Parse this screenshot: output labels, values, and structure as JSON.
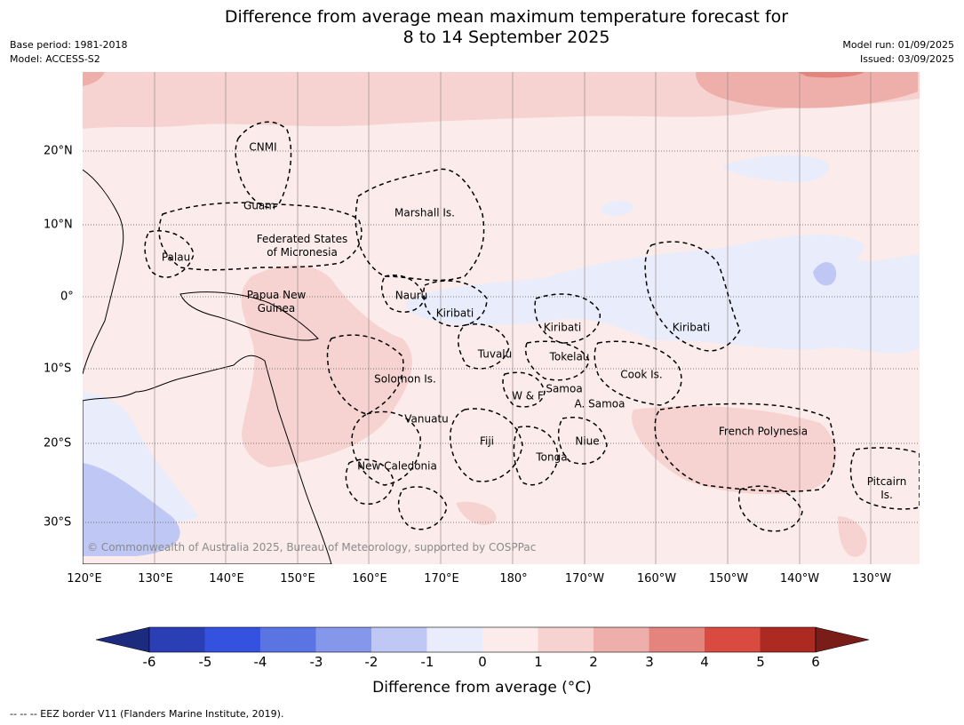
{
  "title_line1": "Difference from average mean maximum temperature forecast for",
  "title_line2": "8 to 14 September 2025",
  "base_period": "Base period: 1981-2018",
  "model": "Model: ACCESS-S2",
  "model_run": "Model run: 01/09/2025",
  "issued": "Issued: 03/09/2025",
  "copyright": "© Commonwealth of Australia 2025, Bureau of Meteorology, supported by COSPPac",
  "lon_labels": [
    "120°E",
    "130°E",
    "140°E",
    "150°E",
    "160°E",
    "170°E",
    "180°",
    "170°W",
    "160°W",
    "150°W",
    "140°W",
    "130°W"
  ],
  "lat_labels": [
    "20°N",
    "10°N",
    "0°",
    "10°S",
    "20°S",
    "30°S"
  ],
  "places": {
    "cnmi": "CNMI",
    "guam": "Guam",
    "marshall": "Marshall Is.",
    "fsm_1": "Federated States",
    "fsm_2": "of Micronesia",
    "palau": "Palau",
    "nauru": "Nauru",
    "png_1": "Papua New",
    "png_2": "Guinea",
    "kiribati_w": "Kiribati",
    "kiribati_c": "Kiribati",
    "kiribati_e": "Kiribati",
    "tuvalu": "Tuvalu",
    "tokelau": "Tokelau",
    "cook": "Cook Is.",
    "solomon": "Solomon Is.",
    "wallis": "W & F",
    "samoa": "Samoa",
    "asamoa": "A. Samoa",
    "vanuatu": "Vanuatu",
    "fiji": "Fiji",
    "niue": "Niue",
    "tonga": "Tonga",
    "french_poly": "French Polynesia",
    "new_cal": "New Caledonia",
    "pitcairn_1": "Pitcairn",
    "pitcairn_2": "Is."
  },
  "colorbar": {
    "ticks": [
      "-6",
      "-5",
      "-4",
      "-3",
      "-2",
      "-1",
      "0",
      "1",
      "2",
      "3",
      "4",
      "5",
      "6"
    ],
    "colors": [
      "#1d2b7f",
      "#2a3fb6",
      "#3451e0",
      "#5a74e4",
      "#8597ea",
      "#bfc7f4",
      "#e8ecfb",
      "#fbeceb",
      "#f6d3d1",
      "#eeaeaa",
      "#e5837d",
      "#d94b40",
      "#ad2a22",
      "#7a1c18"
    ],
    "label": "Difference from average (°C)"
  },
  "footnote": "--  --  -- EEZ border V11 (Flanders Marine Institute, 2019)."
}
